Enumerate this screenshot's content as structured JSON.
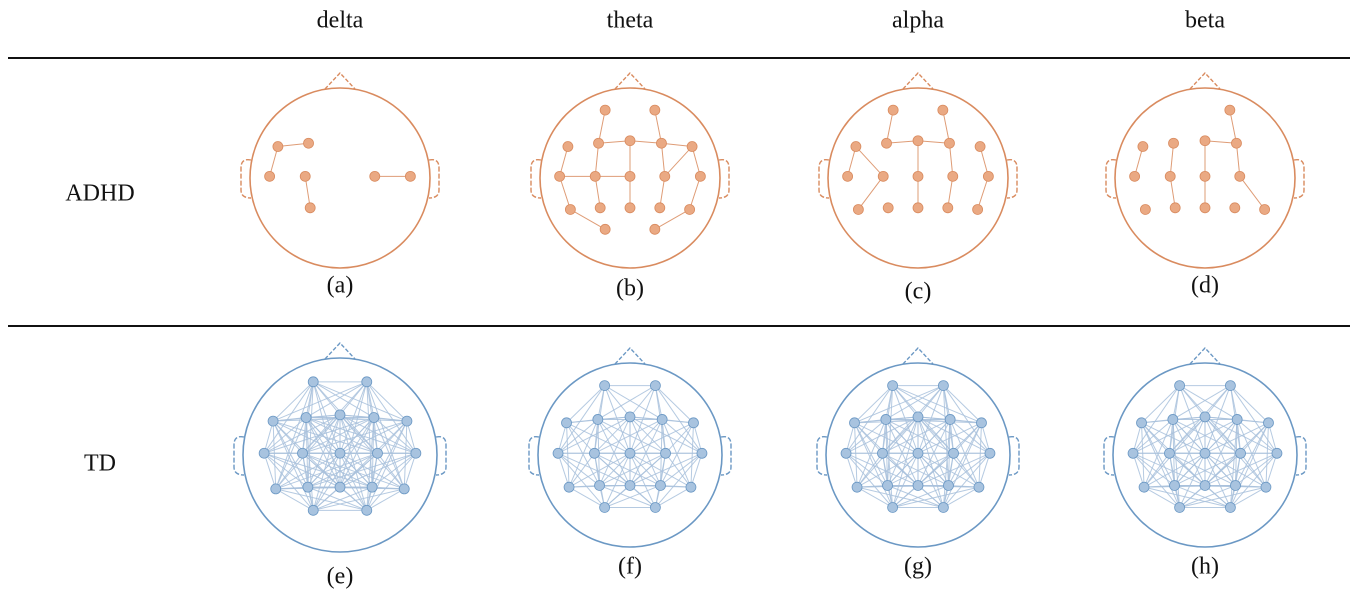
{
  "columns": [
    "delta",
    "theta",
    "alpha",
    "beta"
  ],
  "rows": [
    {
      "label": "ADHD",
      "panels": [
        "(a)",
        "(b)",
        "(c)",
        "(d)"
      ]
    },
    {
      "label": "TD",
      "panels": [
        "(e)",
        "(f)",
        "(g)",
        "(h)"
      ]
    }
  ]
}
